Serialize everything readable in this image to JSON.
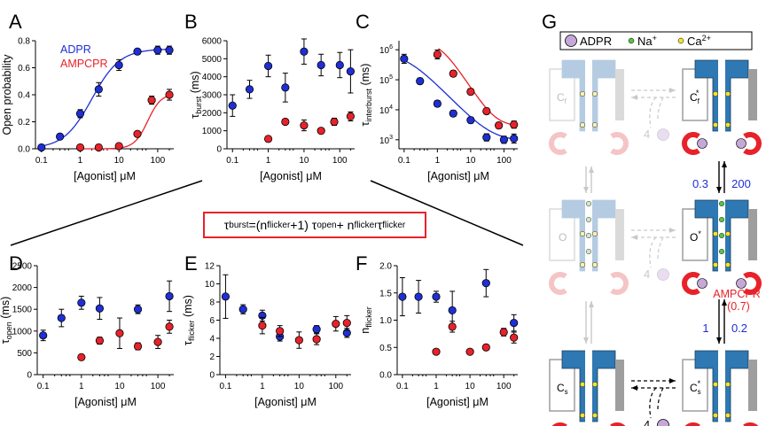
{
  "figure": {
    "letters": [
      "A",
      "B",
      "C",
      "D",
      "E",
      "F",
      "G"
    ],
    "equation": {
      "tau": "τ",
      "burst": "burst",
      "eq1": "=(n",
      "flicker": "flicker",
      "eq2": "+1) τ",
      "open": "open",
      "eq3": " + n",
      "eq4": " τ"
    }
  },
  "colors": {
    "adpr": "#1f2fd6",
    "ampcpr": "#e8222a",
    "channel": "#2e78b3",
    "channel_faded": "#b5cbe2",
    "side": "#9e9e9e",
    "side_faded": "#dadada",
    "ligand": "#c5a8d8",
    "na": "#5bc04a",
    "ca": "#f2e232"
  },
  "chart_data": [
    {
      "panel": "A",
      "type": "scatter",
      "xscale": "log",
      "xlim": [
        0.1,
        200
      ],
      "ylim": [
        0,
        0.8
      ],
      "yticks": [
        "0.0",
        "0.2",
        "0.4",
        "0.6",
        "0.8"
      ],
      "xticks": [
        "0.1",
        "1",
        "10",
        "100"
      ],
      "ylabel": "Open probability",
      "xlabel": "[Agonist] μM",
      "legend": [
        "ADPR",
        "AMPCPR"
      ],
      "series": [
        {
          "name": "ADPR",
          "x": [
            0.1,
            0.3,
            1,
            3,
            10,
            30,
            100,
            200
          ],
          "y": [
            0.01,
            0.09,
            0.26,
            0.44,
            0.62,
            0.72,
            0.73,
            0.73
          ],
          "err": [
            0.01,
            0.02,
            0.03,
            0.05,
            0.04,
            0.02,
            0.03,
            0.03
          ],
          "fit": {
            "max": 0.74,
            "ec50": 2.0,
            "n": 1.2
          }
        },
        {
          "name": "AMPCPR",
          "x": [
            1,
            3,
            10,
            30,
            70,
            200
          ],
          "y": [
            0.01,
            0.01,
            0.02,
            0.11,
            0.36,
            0.4
          ],
          "err": [
            0.01,
            0.01,
            0.01,
            0.02,
            0.03,
            0.04
          ],
          "fit": {
            "max": 0.41,
            "ec50": 55,
            "n": 2.5
          }
        }
      ]
    },
    {
      "panel": "B",
      "type": "scatter",
      "xscale": "log",
      "xlim": [
        0.1,
        200
      ],
      "ylim": [
        0,
        6000
      ],
      "yticks": [
        "0",
        "1000",
        "2000",
        "3000",
        "4000",
        "5000",
        "6000"
      ],
      "xticks": [
        "0.1",
        "1",
        "10",
        "100"
      ],
      "ylabel": "τburst (ms)",
      "ylabel_main": "τ",
      "ylabel_sub": "burst",
      "ylabel_unit": " (ms)",
      "xlabel": "[Agonist] μM",
      "series": [
        {
          "name": "ADPR",
          "x": [
            0.1,
            0.3,
            1,
            3,
            10,
            30,
            100,
            200
          ],
          "y": [
            2400,
            3300,
            4600,
            3400,
            5400,
            4650,
            4650,
            4300
          ],
          "err": [
            600,
            500,
            600,
            800,
            700,
            600,
            700,
            1200
          ]
        },
        {
          "name": "AMPCPR",
          "x": [
            1,
            3,
            10,
            30,
            70,
            200
          ],
          "y": [
            550,
            1500,
            1300,
            1000,
            1500,
            1800
          ],
          "err": [
            100,
            150,
            300,
            150,
            200,
            250
          ]
        }
      ]
    },
    {
      "panel": "C",
      "type": "scatter",
      "xscale": "log",
      "yscale": "log",
      "xlim": [
        0.1,
        200
      ],
      "ylim": [
        500,
        2000000
      ],
      "yticks": [
        "10^3",
        "10^4",
        "10^5",
        "10^6"
      ],
      "xticks": [
        "0.1",
        "1",
        "10",
        "100"
      ],
      "ylabel": "τinterburst (ms)",
      "ylabel_main": "τ",
      "ylabel_sub": "interburst",
      "ylabel_unit": " (ms)",
      "xlabel": "[Agonist] μM",
      "series": [
        {
          "name": "ADPR",
          "x": [
            0.1,
            0.3,
            1,
            3,
            10,
            30,
            100,
            200
          ],
          "y": [
            500000,
            90000,
            16000,
            7500,
            4500,
            1200,
            1000,
            1100
          ],
          "err": [
            0.15,
            0.1,
            0.1,
            0.1,
            0.1,
            0.12,
            0.12,
            0.15
          ],
          "fit": "hill-down-blue"
        },
        {
          "name": "AMPCPR",
          "x": [
            1,
            3,
            10,
            30,
            70,
            200
          ],
          "y": [
            700000,
            160000,
            40000,
            9000,
            3000,
            3200
          ],
          "err": [
            0.15,
            0.1,
            0.1,
            0.1,
            0.1,
            0.12
          ],
          "fit": "hill-down-red"
        }
      ]
    },
    {
      "panel": "D",
      "type": "scatter",
      "xscale": "log",
      "xlim": [
        0.1,
        200
      ],
      "ylim": [
        0,
        2500
      ],
      "yticks": [
        "0",
        "500",
        "1000",
        "1500",
        "2000",
        "2500"
      ],
      "xticks": [
        "0.1",
        "1",
        "10",
        "100"
      ],
      "ylabel": "τopen (ms)",
      "ylabel_main": "τ",
      "ylabel_sub": "open",
      "ylabel_unit": " (ms)",
      "xlabel": "[Agonist] μM",
      "series": [
        {
          "name": "ADPR",
          "x": [
            0.1,
            0.3,
            1,
            3,
            30,
            200
          ],
          "y": [
            900,
            1300,
            1650,
            1520,
            1500,
            1800
          ],
          "err": [
            120,
            200,
            150,
            250,
            100,
            350
          ]
        },
        {
          "name": "AMPCPR",
          "x": [
            1,
            3,
            10,
            30,
            100,
            200
          ],
          "y": [
            400,
            780,
            950,
            650,
            750,
            1100
          ],
          "err": [
            60,
            80,
            350,
            80,
            150,
            150
          ]
        }
      ]
    },
    {
      "panel": "E",
      "type": "scatter",
      "xscale": "log",
      "xlim": [
        0.1,
        200
      ],
      "ylim": [
        0,
        12
      ],
      "yticks": [
        "0",
        "2",
        "4",
        "6",
        "8",
        "10",
        "12"
      ],
      "xticks": [
        "0.1",
        "1",
        "10",
        "100"
      ],
      "ylabel": "τflicker (ms)",
      "ylabel_main": "τ",
      "ylabel_sub": "flicker",
      "ylabel_unit": " (ms)",
      "xlabel": "[Agonist] μM",
      "series": [
        {
          "name": "ADPR",
          "x": [
            0.1,
            0.3,
            1,
            3,
            30,
            200
          ],
          "y": [
            8.6,
            7.2,
            6.5,
            4.2,
            5.0,
            4.6
          ],
          "err": [
            2.4,
            0.5,
            0.6,
            0.5,
            0.4,
            0.5
          ]
        },
        {
          "name": "AMPCPR",
          "x": [
            1,
            3,
            10,
            30,
            100,
            200
          ],
          "y": [
            5.4,
            4.8,
            3.8,
            3.9,
            5.6,
            5.7
          ],
          "err": [
            0.9,
            0.6,
            0.9,
            0.6,
            0.8,
            0.8
          ]
        }
      ]
    },
    {
      "panel": "F",
      "type": "scatter",
      "xscale": "log",
      "xlim": [
        0.1,
        200
      ],
      "ylim": [
        0,
        2
      ],
      "yticks": [
        "0.0",
        "0.5",
        "1.0",
        "1.5",
        "2.0"
      ],
      "xticks": [
        "0.1",
        "1",
        "10",
        "100"
      ],
      "ylabel": "nflicker",
      "ylabel_main": "n",
      "ylabel_sub": "flicker",
      "ylabel_unit": "",
      "xlabel": "[Agonist] μM",
      "series": [
        {
          "name": "ADPR",
          "x": [
            0.1,
            0.3,
            1,
            3,
            30,
            200
          ],
          "y": [
            1.43,
            1.43,
            1.43,
            1.18,
            1.68,
            0.95
          ],
          "err": [
            0.35,
            0.3,
            0.1,
            0.35,
            0.25,
            0.15
          ]
        },
        {
          "name": "AMPCPR",
          "x": [
            1,
            3,
            10,
            30,
            100,
            200
          ],
          "y": [
            0.42,
            0.88,
            0.42,
            0.5,
            0.78,
            0.68
          ],
          "err": [
            0.05,
            0.1,
            0.03,
            0.05,
            0.07,
            0.1
          ]
        }
      ]
    }
  ],
  "scheme": {
    "legend": {
      "adpr": "ADPR",
      "na": "Na",
      "na_sup": "+",
      "ca": "Ca",
      "ca_sup": "2+"
    },
    "states": {
      "cf": "C",
      "cf_sub": "f",
      "cfs": "C",
      "cfs_sub": "f",
      "cfs_sup": "*",
      "o": "O",
      "os": "O",
      "os_sup": "*",
      "cs": "C",
      "cs_sub": "s",
      "css": "C",
      "css_sub": "s",
      "css_sup": "*"
    },
    "four": "4",
    "rates": {
      "upper_left": "0.3",
      "upper_right": "200",
      "lower_left": "1",
      "lower_right": "0.2"
    },
    "ampcpr_label": "AMPCPR",
    "ampcpr_value": "(0.7)"
  }
}
